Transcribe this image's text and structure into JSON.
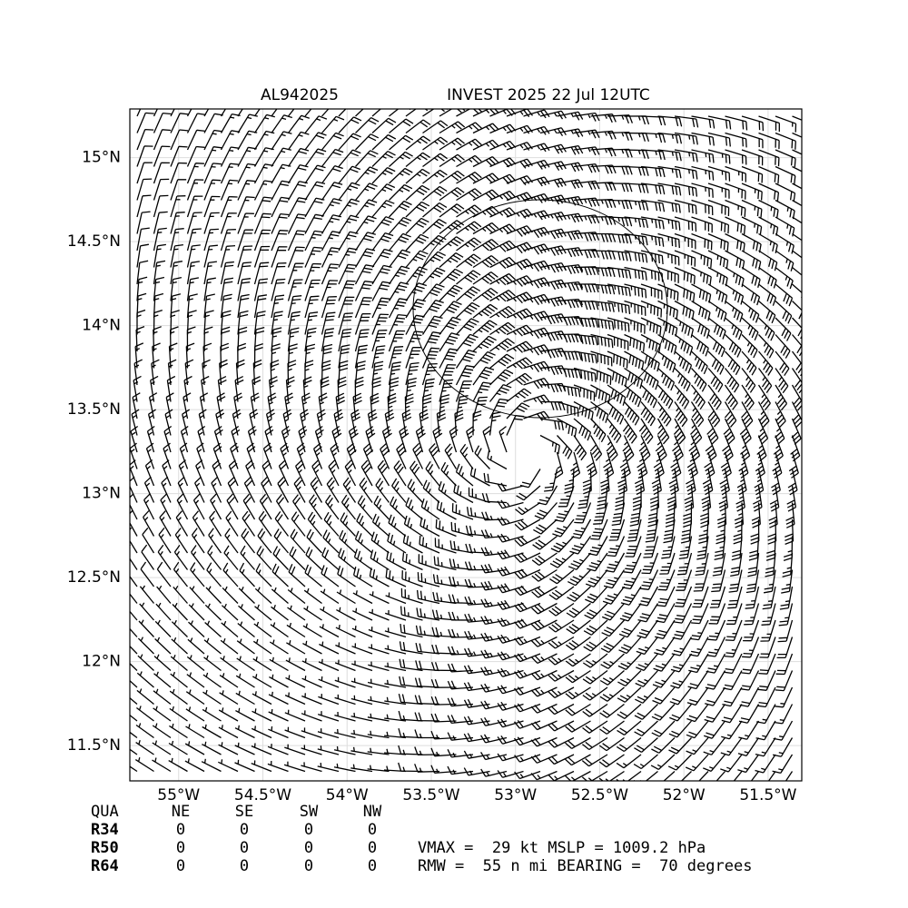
{
  "chart_data": {
    "type": "wind-barb",
    "title": "AL942025",
    "subtitle": "INVEST 2025 22 Jul 12UTC",
    "xlim": [
      -55.29,
      -51.3
    ],
    "ylim": [
      11.29,
      15.29
    ],
    "xticks": [
      {
        "value": -55,
        "label": "55°W"
      },
      {
        "value": -54.5,
        "label": "54.5°W"
      },
      {
        "value": -54,
        "label": "54°W"
      },
      {
        "value": -53.5,
        "label": "53.5°W"
      },
      {
        "value": -53,
        "label": "53°W"
      },
      {
        "value": -52.5,
        "label": "52.5°W"
      },
      {
        "value": -52,
        "label": "52°W"
      },
      {
        "value": -51.5,
        "label": "51.5°W"
      }
    ],
    "yticks": [
      {
        "value": 11.5,
        "label": "11.5°N"
      },
      {
        "value": 12,
        "label": "12°N"
      },
      {
        "value": 12.5,
        "label": "12.5°N"
      },
      {
        "value": 13,
        "label": "13°N"
      },
      {
        "value": 13.5,
        "label": "13.5°N"
      },
      {
        "value": 14,
        "label": "14°N"
      },
      {
        "value": 14.5,
        "label": "14.5°N"
      },
      {
        "value": 15,
        "label": "15°N"
      }
    ],
    "grid": true
  },
  "radii_table": {
    "header": [
      "QUA",
      "NE",
      "SE",
      "SW",
      "NW"
    ],
    "rows": [
      [
        "R34",
        "0",
        "0",
        "0",
        "0"
      ],
      [
        "R50",
        "0",
        "0",
        "0",
        "0"
      ],
      [
        "R64",
        "0",
        "0",
        "0",
        "0"
      ]
    ]
  },
  "summary": [
    "VMAX =  29 kt MSLP = 1009.2 hPa",
    "RMW =  55 n mi BEARING =  70 degrees"
  ]
}
